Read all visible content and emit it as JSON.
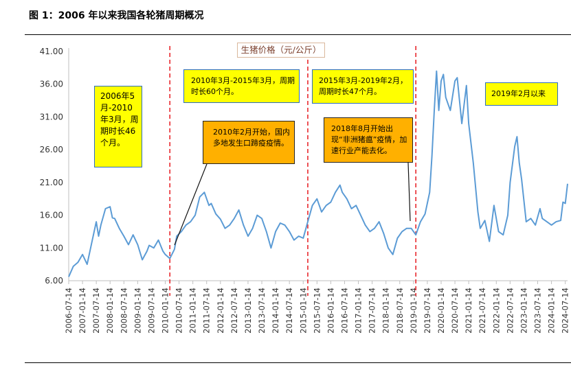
{
  "figure_title": "图 1：2006 年以来我国各轮猪周期概况",
  "chart_data": {
    "type": "line",
    "title": "生猪价格（元/公斤）",
    "ylim": [
      6,
      41
    ],
    "yticks": [
      "41.00",
      "36.00",
      "31.00",
      "26.00",
      "21.00",
      "16.00",
      "11.00",
      "6.00"
    ],
    "xticks": [
      "2006-07-14",
      "2007-01-14",
      "2007-07-14",
      "2008-01-14",
      "2008-07-14",
      "2009-01-14",
      "2009-07-14",
      "2010-01-14",
      "2010-07-14",
      "2011-01-14",
      "2011-07-14",
      "2012-01-14",
      "2012-07-14",
      "2013-01-14",
      "2013-07-14",
      "2014-01-14",
      "2014-07-14",
      "2015-01-14",
      "2015-07-14",
      "2016-01-14",
      "2016-07-14",
      "2017-01-14",
      "2017-07-14",
      "2018-01-14",
      "2018-07-14",
      "2019-01-14",
      "2019-07-14",
      "2020-01-14",
      "2020-07-14",
      "2021-01-14",
      "2021-07-14",
      "2022-01-14",
      "2022-07-14",
      "2023-01-14",
      "2023-07-14",
      "2024-01-14",
      "2024-07-14"
    ],
    "series": [
      {
        "color": "#5b9bd5",
        "x": [
          "2006-07",
          "2006-09",
          "2006-11",
          "2007-01",
          "2007-03",
          "2007-05",
          "2007-07",
          "2007-08",
          "2007-09",
          "2007-11",
          "2008-01",
          "2008-02",
          "2008-03",
          "2008-05",
          "2008-07",
          "2008-09",
          "2008-11",
          "2009-01",
          "2009-03",
          "2009-05",
          "2009-06",
          "2009-08",
          "2009-10",
          "2009-12",
          "2010-01",
          "2010-03",
          "2010-05",
          "2010-06",
          "2010-08",
          "2010-10",
          "2010-12",
          "2011-02",
          "2011-04",
          "2011-06",
          "2011-08",
          "2011-09",
          "2011-11",
          "2012-01",
          "2012-03",
          "2012-05",
          "2012-07",
          "2012-09",
          "2012-11",
          "2013-01",
          "2013-03",
          "2013-05",
          "2013-07",
          "2013-09",
          "2013-11",
          "2014-01",
          "2014-03",
          "2014-05",
          "2014-07",
          "2014-09",
          "2014-11",
          "2015-01",
          "2015-03",
          "2015-05",
          "2015-07",
          "2015-09",
          "2015-11",
          "2016-01",
          "2016-03",
          "2016-05",
          "2016-06",
          "2016-08",
          "2016-10",
          "2016-12",
          "2017-02",
          "2017-04",
          "2017-06",
          "2017-08",
          "2017-10",
          "2017-12",
          "2018-02",
          "2018-04",
          "2018-06",
          "2018-08",
          "2018-10",
          "2018-12",
          "2019-02",
          "2019-04",
          "2019-06",
          "2019-08",
          "2019-09",
          "2019-10",
          "2019-11",
          "2019-12",
          "2020-01",
          "2020-02",
          "2020-03",
          "2020-04",
          "2020-05",
          "2020-07",
          "2020-08",
          "2020-10",
          "2020-12",
          "2021-01",
          "2021-03",
          "2021-05",
          "2021-06",
          "2021-08",
          "2021-10",
          "2021-12",
          "2022-02",
          "2022-04",
          "2022-06",
          "2022-07",
          "2022-09",
          "2022-10",
          "2022-11",
          "2022-12",
          "2023-02",
          "2023-04",
          "2023-06",
          "2023-08",
          "2023-09",
          "2023-11",
          "2024-01",
          "2024-03",
          "2024-05",
          "2024-06",
          "2024-07",
          "2024-08"
        ],
        "values": [
          6.6,
          8.2,
          8.8,
          10.0,
          8.5,
          11.8,
          15.0,
          12.8,
          14.5,
          17.0,
          17.3,
          15.6,
          15.5,
          14.0,
          12.8,
          11.5,
          13.0,
          11.5,
          9.2,
          10.5,
          11.4,
          11.0,
          12.2,
          10.5,
          10.0,
          9.4,
          10.8,
          12.8,
          13.5,
          14.5,
          15.0,
          16.0,
          18.8,
          19.5,
          17.5,
          17.8,
          16.2,
          15.4,
          14.0,
          14.5,
          15.5,
          16.8,
          14.5,
          12.8,
          14.0,
          16.0,
          15.5,
          13.5,
          11.0,
          13.5,
          14.8,
          14.5,
          13.5,
          12.2,
          12.8,
          12.5,
          15.0,
          17.5,
          18.5,
          16.5,
          17.5,
          18.0,
          19.5,
          20.6,
          19.5,
          18.5,
          17.0,
          17.5,
          16.0,
          14.5,
          13.5,
          14.0,
          15.0,
          13.2,
          11.0,
          10.0,
          12.5,
          13.5,
          14.0,
          14.0,
          13.0,
          15.0,
          16.2,
          19.5,
          25.0,
          32.0,
          38.0,
          32.0,
          36.5,
          37.5,
          34.0,
          33.0,
          32.0,
          36.5,
          37.0,
          30.0,
          35.8,
          30.0,
          24.0,
          16.5,
          14.0,
          15.2,
          12.0,
          17.5,
          13.5,
          13.0,
          16.0,
          21.0,
          26.5,
          28.0,
          24.0,
          21.5,
          15.0,
          15.5,
          14.5,
          17.0,
          15.5,
          15.0,
          14.5,
          15.0,
          15.2,
          18.0,
          17.8,
          20.8
        ]
      }
    ],
    "cycle_markers": [
      "2010-03",
      "2015-03",
      "2019-02"
    ],
    "annotations": {
      "box1": "2006年5月-2010年3月，周期时长46个月。",
      "box2": "2010年3月-2015年3月，周期时长60个月。",
      "box3": "2015年3月-2019年2月，周期时长47个月。",
      "box4": "2019年2月以来",
      "box5": "2010年2月开始，国内多地发生口蹄疫疫情。",
      "box6": "2018年8月开始出现“非洲猪瘟”疫情，加速行业产能去化。"
    }
  }
}
